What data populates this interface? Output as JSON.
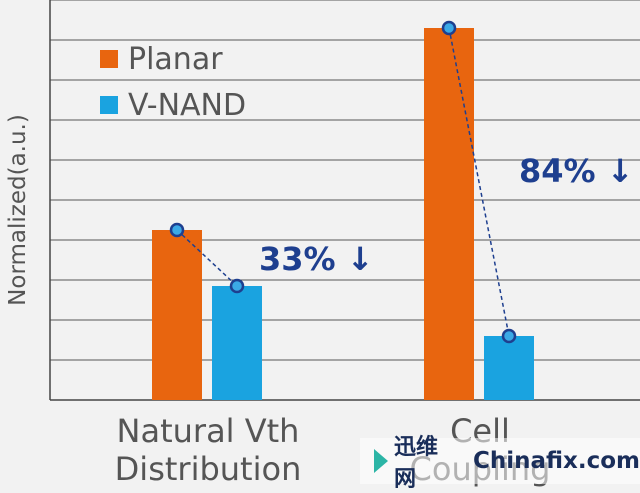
{
  "chart_data": {
    "type": "bar",
    "title": "",
    "ylabel": "Normalized(a.u.)",
    "xlabel": "",
    "ylim": [
      0,
      10
    ],
    "grid": true,
    "legend_position": "top-left",
    "categories": [
      "Natural Vth\nDistribution",
      "Cell\nCoupling"
    ],
    "series": [
      {
        "name": "Planar",
        "color": "#e8650f",
        "values": [
          4.25,
          9.3
        ]
      },
      {
        "name": "V-NAND",
        "color": "#1aa3e0",
        "values": [
          2.85,
          1.6
        ]
      }
    ],
    "annotations": [
      {
        "category": "Natural Vth\nDistribution",
        "text": "33% ↓"
      },
      {
        "category": "Cell\nCoupling",
        "text": "84% ↓"
      }
    ],
    "annotation_color": "#1e3f8f"
  },
  "watermark": {
    "cn": "迅维网",
    "en": "Chinafix.com"
  }
}
